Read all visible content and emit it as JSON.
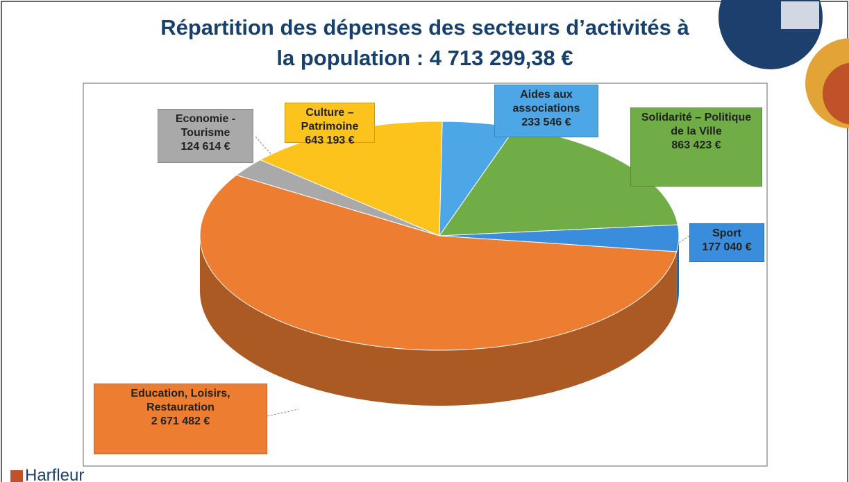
{
  "chart_data": {
    "type": "pie",
    "title": "Répartition des dépenses des secteurs d’activités à la population : 4 713 299,38 €",
    "categories": [
      "Culture – Patrimoine",
      "Aides aux associations",
      "Solidarité – Politique de la Ville",
      "Sport",
      "Education, Loisirs, Restauration",
      "Economie - Tourisme"
    ],
    "values": [
      643193,
      233546,
      863423,
      177040,
      2671482,
      124614
    ],
    "value_labels": [
      "643 193 €",
      "233 546 €",
      "863 423 €",
      "177 040 €",
      "2 671 482 €",
      "124 614 €"
    ],
    "colors": [
      "#fbc31c",
      "#4da6e6",
      "#70ad47",
      "#3a8ddc",
      "#ed7d31",
      "#a9a9a9"
    ]
  },
  "logo": "Harfleur"
}
